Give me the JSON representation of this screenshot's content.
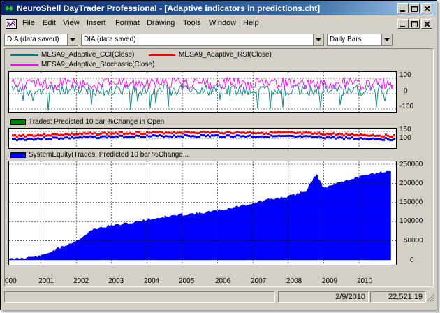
{
  "window": {
    "title": "NeuroShell DayTrader Professional - [Adaptive indicators in predictions.cht]",
    "app_icon": "neuroshell-app-icon",
    "controls": [
      "minimize",
      "restore",
      "close"
    ]
  },
  "menu": {
    "items": [
      "File",
      "Edit",
      "View",
      "Insert",
      "Format",
      "Drawing",
      "Tools",
      "Window",
      "Help"
    ],
    "mdi_controls": [
      "minimize",
      "restore",
      "close"
    ]
  },
  "toolbar": {
    "combo1": "DIA (data saved)",
    "combo2": "DIA (data saved)",
    "combo3": "Daily Bars"
  },
  "panes": {
    "indicators": {
      "legend": [
        {
          "name": "MESA9_Adaptive_CCI(Close)",
          "color": "#008080"
        },
        {
          "name": "MESA9_Adaptive_RSI(Close)",
          "color": "#ff0000"
        },
        {
          "name": "MESA9_Adaptive_Stochastic(Close)",
          "color": "#ff00ff"
        }
      ],
      "y_ticks": [
        "100",
        "0",
        "-100"
      ]
    },
    "trades": {
      "legend": {
        "name": "Trades: Predicted 10 bar %Change in Open",
        "color": "#008000"
      },
      "y_ticks": [
        "150",
        "100"
      ]
    },
    "equity": {
      "legend": {
        "name": "SystemEquity(Trades: Predicted 10 bar %Change...",
        "color": "#0000ff"
      },
      "y_ticks": [
        "250000",
        "200000",
        "150000",
        "100000",
        "50000",
        "0"
      ]
    }
  },
  "x_axis": {
    "labels": [
      "000",
      "2001",
      "2002",
      "2003",
      "2004",
      "2005",
      "2006",
      "2007",
      "2008",
      "2009",
      "2010"
    ]
  },
  "chart_data": {
    "type": "area",
    "title": "SystemEquity(Trades: Predicted 10 bar %Change...",
    "x": [
      2000.0,
      2000.5,
      2001.0,
      2001.5,
      2002.0,
      2002.5,
      2003.0,
      2003.5,
      2004.0,
      2004.5,
      2005.0,
      2005.5,
      2006.0,
      2006.5,
      2007.0,
      2007.5,
      2008.0,
      2008.5,
      2008.8,
      2009.0,
      2009.5,
      2010.0,
      2010.5,
      2010.9
    ],
    "values": [
      0,
      5000,
      10000,
      30000,
      50000,
      80000,
      90000,
      95000,
      105000,
      112000,
      118000,
      122000,
      128000,
      138000,
      148000,
      158000,
      165000,
      180000,
      225000,
      185000,
      205000,
      215000,
      228000,
      232000
    ],
    "ylim": [
      0,
      250000
    ],
    "color": "#0000ff"
  },
  "status": {
    "date": "2/9/2010",
    "value": "22,521.19"
  }
}
